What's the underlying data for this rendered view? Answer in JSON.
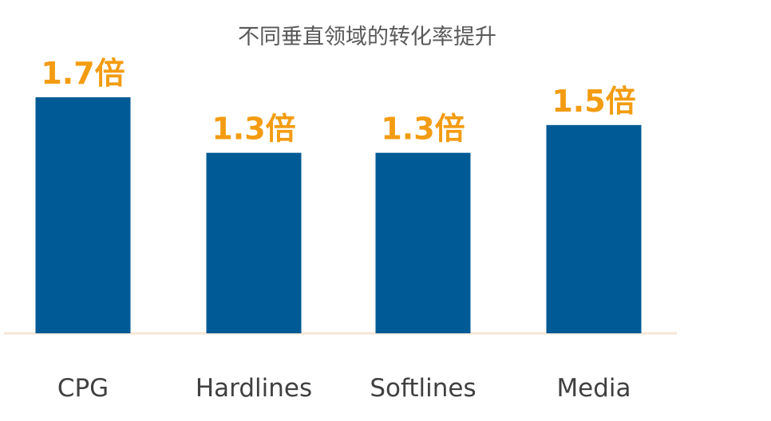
{
  "chart_data": {
    "type": "bar",
    "title": "不同垂直领域的转化率提升",
    "categories": [
      "CPG",
      "Hardlines",
      "Softlines",
      "Media"
    ],
    "values": [
      1.7,
      1.3,
      1.3,
      1.5
    ],
    "data_labels": [
      "1.7倍",
      "1.3倍",
      "1.3倍",
      "1.5倍"
    ],
    "xlabel": "",
    "ylabel": "",
    "ylim": [
      0,
      1.7
    ],
    "grid": false,
    "legend": "none",
    "colors": {
      "bar": "#005a96",
      "label": "#f39c12",
      "axis": "#f5e6d6",
      "title": "#595959",
      "category": "#404040"
    }
  }
}
